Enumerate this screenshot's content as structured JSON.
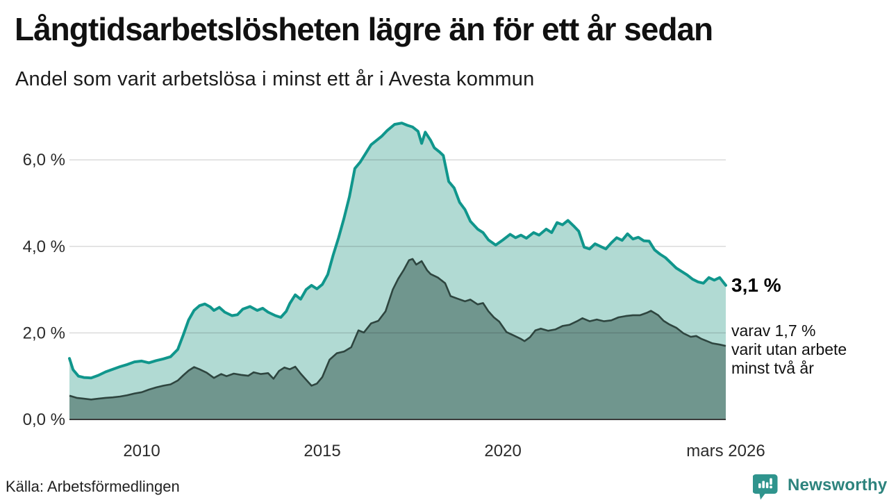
{
  "header": {
    "title": "Långtidsarbetslösheten lägre än för ett år sedan",
    "subtitle": "Andel som varit arbetslösa i minst ett år i Avesta kommun"
  },
  "annotations": {
    "latest_value": "3,1 %",
    "note_lines": [
      "varav 1,7 %",
      "varit utan arbete",
      "minst två år"
    ]
  },
  "footer": {
    "source": "Källa: Arbetsförmedlingen",
    "brand": "Newsworthy"
  },
  "colors": {
    "accent_teal": "#10968c",
    "light_fill": "#b1dad3",
    "dark_line": "#2e453f",
    "dark_fill": "#70968e",
    "grid": "rgba(0,0,0,0.14)",
    "baseline": "#3a3a3a",
    "axis_text": "#2b2b2b",
    "brand_teal": "#2d837d"
  },
  "chart_data": {
    "type": "area",
    "title": "Långtidsarbetslösheten lägre än för ett år sedan",
    "subtitle": "Andel som varit arbetslösa i minst ett år i Avesta kommun",
    "grid": true,
    "unit": "%",
    "x_axis": {
      "range": [
        2008.0,
        2026.17
      ],
      "ticks": [
        {
          "label": "2010",
          "year": 2010.0
        },
        {
          "label": "2015",
          "year": 2015.0
        },
        {
          "label": "2020",
          "year": 2020.0
        },
        {
          "label": "mars 2026",
          "year": 2026.17
        }
      ]
    },
    "y_axis": {
      "range": [
        0,
        7.3
      ],
      "ticks": [
        {
          "label": "0,0 %",
          "value": 0
        },
        {
          "label": "2,0 %",
          "value": 2
        },
        {
          "label": "4,0 %",
          "value": 4
        },
        {
          "label": "6,0 %",
          "value": 6
        }
      ]
    },
    "series": [
      {
        "name": "Andel arbetslösa minst ett år",
        "latest_label": "3,1 %",
        "latest_value": 3.1,
        "points": [
          [
            2008.0,
            1.41
          ],
          [
            2008.1,
            1.15
          ],
          [
            2008.25,
            1.0
          ],
          [
            2008.4,
            0.97
          ],
          [
            2008.6,
            0.96
          ],
          [
            2008.8,
            1.02
          ],
          [
            2009.0,
            1.1
          ],
          [
            2009.2,
            1.16
          ],
          [
            2009.4,
            1.22
          ],
          [
            2009.6,
            1.27
          ],
          [
            2009.8,
            1.33
          ],
          [
            2010.0,
            1.35
          ],
          [
            2010.2,
            1.31
          ],
          [
            2010.4,
            1.36
          ],
          [
            2010.6,
            1.4
          ],
          [
            2010.8,
            1.45
          ],
          [
            2011.0,
            1.62
          ],
          [
            2011.15,
            1.95
          ],
          [
            2011.3,
            2.3
          ],
          [
            2011.45,
            2.52
          ],
          [
            2011.6,
            2.63
          ],
          [
            2011.75,
            2.67
          ],
          [
            2011.9,
            2.6
          ],
          [
            2012.0,
            2.52
          ],
          [
            2012.15,
            2.59
          ],
          [
            2012.3,
            2.48
          ],
          [
            2012.5,
            2.4
          ],
          [
            2012.65,
            2.42
          ],
          [
            2012.8,
            2.55
          ],
          [
            2013.0,
            2.61
          ],
          [
            2013.2,
            2.52
          ],
          [
            2013.35,
            2.57
          ],
          [
            2013.5,
            2.48
          ],
          [
            2013.7,
            2.4
          ],
          [
            2013.85,
            2.36
          ],
          [
            2014.0,
            2.5
          ],
          [
            2014.1,
            2.68
          ],
          [
            2014.25,
            2.88
          ],
          [
            2014.4,
            2.78
          ],
          [
            2014.55,
            3.0
          ],
          [
            2014.7,
            3.1
          ],
          [
            2014.85,
            3.02
          ],
          [
            2015.0,
            3.12
          ],
          [
            2015.15,
            3.35
          ],
          [
            2015.3,
            3.8
          ],
          [
            2015.45,
            4.2
          ],
          [
            2015.6,
            4.65
          ],
          [
            2015.75,
            5.15
          ],
          [
            2015.9,
            5.8
          ],
          [
            2016.05,
            5.95
          ],
          [
            2016.2,
            6.15
          ],
          [
            2016.35,
            6.35
          ],
          [
            2016.5,
            6.45
          ],
          [
            2016.65,
            6.55
          ],
          [
            2016.8,
            6.68
          ],
          [
            2017.0,
            6.82
          ],
          [
            2017.2,
            6.85
          ],
          [
            2017.35,
            6.8
          ],
          [
            2017.5,
            6.76
          ],
          [
            2017.65,
            6.66
          ],
          [
            2017.75,
            6.38
          ],
          [
            2017.85,
            6.64
          ],
          [
            2018.0,
            6.45
          ],
          [
            2018.1,
            6.28
          ],
          [
            2018.25,
            6.18
          ],
          [
            2018.35,
            6.1
          ],
          [
            2018.5,
            5.5
          ],
          [
            2018.65,
            5.35
          ],
          [
            2018.8,
            5.02
          ],
          [
            2018.95,
            4.85
          ],
          [
            2019.1,
            4.58
          ],
          [
            2019.3,
            4.4
          ],
          [
            2019.45,
            4.32
          ],
          [
            2019.6,
            4.15
          ],
          [
            2019.8,
            4.03
          ],
          [
            2020.0,
            4.15
          ],
          [
            2020.2,
            4.28
          ],
          [
            2020.35,
            4.2
          ],
          [
            2020.5,
            4.26
          ],
          [
            2020.65,
            4.19
          ],
          [
            2020.85,
            4.32
          ],
          [
            2021.0,
            4.26
          ],
          [
            2021.2,
            4.4
          ],
          [
            2021.35,
            4.32
          ],
          [
            2021.5,
            4.55
          ],
          [
            2021.65,
            4.5
          ],
          [
            2021.8,
            4.6
          ],
          [
            2021.95,
            4.48
          ],
          [
            2022.1,
            4.35
          ],
          [
            2022.25,
            3.98
          ],
          [
            2022.4,
            3.94
          ],
          [
            2022.55,
            4.06
          ],
          [
            2022.7,
            4.0
          ],
          [
            2022.85,
            3.94
          ],
          [
            2023.0,
            4.08
          ],
          [
            2023.15,
            4.2
          ],
          [
            2023.3,
            4.14
          ],
          [
            2023.45,
            4.29
          ],
          [
            2023.6,
            4.17
          ],
          [
            2023.75,
            4.21
          ],
          [
            2023.9,
            4.13
          ],
          [
            2024.05,
            4.12
          ],
          [
            2024.2,
            3.92
          ],
          [
            2024.35,
            3.82
          ],
          [
            2024.5,
            3.74
          ],
          [
            2024.65,
            3.62
          ],
          [
            2024.8,
            3.5
          ],
          [
            2024.95,
            3.42
          ],
          [
            2025.1,
            3.34
          ],
          [
            2025.25,
            3.24
          ],
          [
            2025.4,
            3.18
          ],
          [
            2025.55,
            3.15
          ],
          [
            2025.7,
            3.28
          ],
          [
            2025.85,
            3.22
          ],
          [
            2026.0,
            3.28
          ],
          [
            2026.17,
            3.1
          ]
        ]
      },
      {
        "name": "varav utan arbete minst två år",
        "latest_label": "1,7 %",
        "latest_value": 1.7,
        "points": [
          [
            2008.0,
            0.55
          ],
          [
            2008.2,
            0.5
          ],
          [
            2008.4,
            0.48
          ],
          [
            2008.6,
            0.46
          ],
          [
            2008.8,
            0.48
          ],
          [
            2009.0,
            0.5
          ],
          [
            2009.2,
            0.51
          ],
          [
            2009.4,
            0.53
          ],
          [
            2009.6,
            0.56
          ],
          [
            2009.8,
            0.6
          ],
          [
            2010.0,
            0.63
          ],
          [
            2010.2,
            0.69
          ],
          [
            2010.4,
            0.74
          ],
          [
            2010.6,
            0.78
          ],
          [
            2010.8,
            0.81
          ],
          [
            2011.0,
            0.9
          ],
          [
            2011.15,
            1.02
          ],
          [
            2011.3,
            1.13
          ],
          [
            2011.45,
            1.21
          ],
          [
            2011.6,
            1.16
          ],
          [
            2011.8,
            1.08
          ],
          [
            2012.0,
            0.96
          ],
          [
            2012.2,
            1.05
          ],
          [
            2012.35,
            1.0
          ],
          [
            2012.55,
            1.06
          ],
          [
            2012.75,
            1.03
          ],
          [
            2012.95,
            1.01
          ],
          [
            2013.1,
            1.09
          ],
          [
            2013.3,
            1.05
          ],
          [
            2013.5,
            1.07
          ],
          [
            2013.65,
            0.94
          ],
          [
            2013.8,
            1.12
          ],
          [
            2013.95,
            1.2
          ],
          [
            2014.1,
            1.16
          ],
          [
            2014.25,
            1.22
          ],
          [
            2014.4,
            1.06
          ],
          [
            2014.55,
            0.92
          ],
          [
            2014.7,
            0.78
          ],
          [
            2014.85,
            0.83
          ],
          [
            2015.0,
            0.98
          ],
          [
            2015.2,
            1.38
          ],
          [
            2015.4,
            1.53
          ],
          [
            2015.6,
            1.57
          ],
          [
            2015.8,
            1.67
          ],
          [
            2016.0,
            2.06
          ],
          [
            2016.15,
            2.01
          ],
          [
            2016.35,
            2.22
          ],
          [
            2016.55,
            2.28
          ],
          [
            2016.75,
            2.5
          ],
          [
            2016.95,
            3.0
          ],
          [
            2017.1,
            3.25
          ],
          [
            2017.25,
            3.45
          ],
          [
            2017.4,
            3.68
          ],
          [
            2017.5,
            3.71
          ],
          [
            2017.6,
            3.58
          ],
          [
            2017.75,
            3.66
          ],
          [
            2017.9,
            3.45
          ],
          [
            2018.0,
            3.36
          ],
          [
            2018.2,
            3.28
          ],
          [
            2018.4,
            3.15
          ],
          [
            2018.55,
            2.85
          ],
          [
            2018.75,
            2.79
          ],
          [
            2018.95,
            2.73
          ],
          [
            2019.1,
            2.77
          ],
          [
            2019.3,
            2.66
          ],
          [
            2019.45,
            2.69
          ],
          [
            2019.6,
            2.5
          ],
          [
            2019.75,
            2.36
          ],
          [
            2019.9,
            2.26
          ],
          [
            2020.1,
            2.02
          ],
          [
            2020.3,
            1.94
          ],
          [
            2020.5,
            1.86
          ],
          [
            2020.6,
            1.81
          ],
          [
            2020.75,
            1.9
          ],
          [
            2020.9,
            2.06
          ],
          [
            2021.05,
            2.1
          ],
          [
            2021.25,
            2.05
          ],
          [
            2021.45,
            2.08
          ],
          [
            2021.65,
            2.16
          ],
          [
            2021.85,
            2.19
          ],
          [
            2022.05,
            2.27
          ],
          [
            2022.2,
            2.34
          ],
          [
            2022.4,
            2.27
          ],
          [
            2022.6,
            2.31
          ],
          [
            2022.8,
            2.27
          ],
          [
            2023.0,
            2.29
          ],
          [
            2023.2,
            2.36
          ],
          [
            2023.4,
            2.39
          ],
          [
            2023.6,
            2.41
          ],
          [
            2023.8,
            2.41
          ],
          [
            2024.0,
            2.47
          ],
          [
            2024.1,
            2.51
          ],
          [
            2024.3,
            2.41
          ],
          [
            2024.45,
            2.28
          ],
          [
            2024.6,
            2.2
          ],
          [
            2024.8,
            2.12
          ],
          [
            2025.0,
            1.99
          ],
          [
            2025.2,
            1.91
          ],
          [
            2025.35,
            1.93
          ],
          [
            2025.5,
            1.86
          ],
          [
            2025.65,
            1.81
          ],
          [
            2025.8,
            1.76
          ],
          [
            2026.0,
            1.73
          ],
          [
            2026.17,
            1.7
          ]
        ]
      }
    ]
  }
}
